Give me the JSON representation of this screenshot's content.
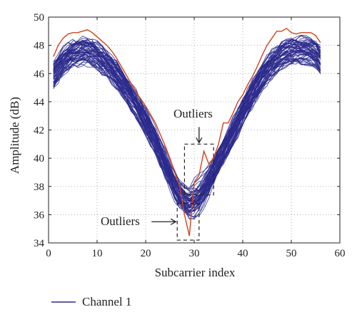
{
  "chart_data": {
    "type": "line",
    "xlabel": "Subcarrier index",
    "ylabel": "Amplitude (dB)",
    "xlim": [
      0,
      60
    ],
    "ylim": [
      34,
      50
    ],
    "xticks": [
      0,
      10,
      20,
      30,
      40,
      50,
      60
    ],
    "yticks": [
      34,
      36,
      38,
      40,
      42,
      44,
      46,
      48,
      50
    ],
    "grid": "dotted",
    "legend": {
      "placement": "below",
      "entries": [
        {
          "name": "Channel 1",
          "color": "#2b2a8c"
        }
      ]
    },
    "colors": {
      "channel": "#2b2a8c",
      "outlier": "#d0421b",
      "annotation": "#222222"
    },
    "x": [
      1,
      2,
      3,
      4,
      5,
      6,
      7,
      8,
      9,
      10,
      11,
      12,
      13,
      14,
      15,
      16,
      17,
      18,
      19,
      20,
      21,
      22,
      23,
      24,
      25,
      26,
      27,
      28,
      29,
      30,
      31,
      32,
      33,
      34,
      35,
      36,
      37,
      38,
      39,
      40,
      41,
      42,
      43,
      44,
      45,
      46,
      47,
      48,
      49,
      50,
      51,
      52,
      53,
      54,
      55,
      56
    ],
    "series": [
      {
        "name": "Channel 1",
        "role": "band-center",
        "values": [
          45.9,
          46.4,
          46.9,
          47.2,
          47.4,
          47.5,
          47.6,
          47.6,
          47.5,
          47.3,
          47.0,
          46.7,
          46.3,
          45.9,
          45.4,
          44.9,
          44.4,
          43.8,
          43.2,
          42.6,
          41.9,
          41.2,
          40.4,
          39.6,
          38.8,
          38.0,
          37.4,
          37.0,
          36.8,
          37.0,
          37.3,
          37.8,
          38.4,
          39.1,
          39.8,
          40.5,
          41.2,
          41.9,
          42.6,
          43.3,
          44.0,
          44.6,
          45.2,
          45.8,
          46.3,
          46.7,
          47.0,
          47.3,
          47.5,
          47.6,
          47.7,
          47.7,
          47.7,
          47.6,
          47.4,
          46.9
        ]
      },
      {
        "name": "Outlier",
        "values": [
          47.2,
          48.0,
          48.5,
          48.8,
          48.9,
          48.9,
          49.0,
          49.1,
          48.9,
          48.6,
          48.3,
          48.0,
          47.6,
          47.1,
          46.5,
          45.9,
          45.3,
          44.7,
          44.2,
          43.7,
          43.1,
          42.5,
          41.7,
          40.9,
          40.0,
          39.0,
          38.0,
          36.0,
          34.5,
          38.3,
          38.8,
          40.5,
          39.6,
          40.0,
          41.0,
          42.5,
          42.5,
          43.2,
          44.0,
          44.5,
          45.2,
          45.8,
          46.5,
          47.3,
          48.0,
          48.5,
          49.0,
          49.0,
          49.2,
          48.9,
          48.8,
          48.9,
          48.9,
          48.9,
          48.7,
          48.2
        ]
      }
    ],
    "annotations": [
      {
        "text": "Outliers",
        "arrow_to": [
          31,
          41
        ]
      },
      {
        "text": "Outliers",
        "arrow_to": [
          26.5,
          35.5
        ]
      }
    ]
  }
}
